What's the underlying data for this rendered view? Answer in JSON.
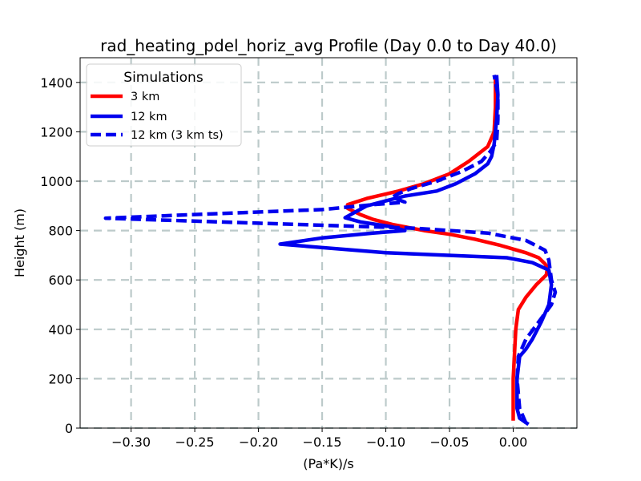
{
  "chart_data": {
    "type": "line",
    "title": "rad_heating_pdel_horiz_avg Profile (Day 0.0 to Day 40.0)",
    "xlabel": "(Pa*K)/s",
    "ylabel": "Height (m)",
    "xlim": [
      -0.34,
      0.05
    ],
    "ylim": [
      0,
      1500
    ],
    "xticks": [
      -0.3,
      -0.25,
      -0.2,
      -0.15,
      -0.1,
      -0.05,
      0.0
    ],
    "xtick_labels": [
      "−0.30",
      "−0.25",
      "−0.20",
      "−0.15",
      "−0.10",
      "−0.05",
      "0.00"
    ],
    "yticks": [
      0,
      200,
      400,
      600,
      800,
      1000,
      1200,
      1400
    ],
    "ytick_labels": [
      "0",
      "200",
      "400",
      "600",
      "800",
      "1000",
      "1200",
      "1400"
    ],
    "grid": true,
    "legend": {
      "title": "Simulations",
      "position": "top-left",
      "entries": [
        "3 km",
        "12 km",
        "12 km (3 km ts)"
      ]
    },
    "series": [
      {
        "name": "3 km",
        "color": "#ff0000",
        "style": "solid",
        "points": [
          [
            0.0,
            30
          ],
          [
            0.0,
            100
          ],
          [
            0.0,
            200
          ],
          [
            0.001,
            300
          ],
          [
            0.002,
            400
          ],
          [
            0.004,
            480
          ],
          [
            0.01,
            530
          ],
          [
            0.018,
            580
          ],
          [
            0.026,
            620
          ],
          [
            0.027,
            650
          ],
          [
            0.025,
            665
          ],
          [
            0.02,
            690
          ],
          [
            0.01,
            710
          ],
          [
            -0.01,
            740
          ],
          [
            -0.03,
            765
          ],
          [
            -0.05,
            785
          ],
          [
            -0.07,
            800
          ],
          [
            -0.095,
            825
          ],
          [
            -0.11,
            845
          ],
          [
            -0.12,
            865
          ],
          [
            -0.13,
            890
          ],
          [
            -0.13,
            905
          ],
          [
            -0.115,
            930
          ],
          [
            -0.09,
            960
          ],
          [
            -0.07,
            990
          ],
          [
            -0.05,
            1030
          ],
          [
            -0.035,
            1080
          ],
          [
            -0.02,
            1140
          ],
          [
            -0.015,
            1200
          ],
          [
            -0.014,
            1300
          ],
          [
            -0.014,
            1430
          ]
        ]
      },
      {
        "name": "12 km",
        "color": "#0000ee",
        "style": "solid",
        "points": [
          [
            0.012,
            15
          ],
          [
            0.005,
            40
          ],
          [
            0.003,
            80
          ],
          [
            0.003,
            200
          ],
          [
            0.005,
            290
          ],
          [
            0.01,
            320
          ],
          [
            0.015,
            360
          ],
          [
            0.022,
            430
          ],
          [
            0.028,
            500
          ],
          [
            0.03,
            580
          ],
          [
            0.028,
            640
          ],
          [
            0.015,
            670
          ],
          [
            -0.005,
            690
          ],
          [
            -0.1,
            710
          ],
          [
            -0.183,
            745
          ],
          [
            -0.15,
            770
          ],
          [
            -0.11,
            790
          ],
          [
            -0.085,
            800
          ],
          [
            -0.095,
            815
          ],
          [
            -0.12,
            835
          ],
          [
            -0.132,
            852
          ],
          [
            -0.125,
            872
          ],
          [
            -0.115,
            900
          ],
          [
            -0.1,
            920
          ],
          [
            -0.085,
            940
          ],
          [
            -0.06,
            960
          ],
          [
            -0.045,
            990
          ],
          [
            -0.03,
            1030
          ],
          [
            -0.02,
            1070
          ],
          [
            -0.017,
            1100
          ],
          [
            -0.015,
            1150
          ],
          [
            -0.013,
            1250
          ],
          [
            -0.012,
            1350
          ],
          [
            -0.013,
            1430
          ]
        ]
      },
      {
        "name": "12 km (3 km ts)",
        "color": "#0000ee",
        "style": "dashed",
        "points": [
          [
            0.01,
            20
          ],
          [
            0.005,
            80
          ],
          [
            0.003,
            200
          ],
          [
            0.004,
            290
          ],
          [
            0.01,
            360
          ],
          [
            0.02,
            430
          ],
          [
            0.03,
            500
          ],
          [
            0.033,
            550
          ],
          [
            0.03,
            600
          ],
          [
            0.028,
            680
          ],
          [
            0.025,
            720
          ],
          [
            0.01,
            760
          ],
          [
            -0.02,
            790
          ],
          [
            -0.08,
            810
          ],
          [
            -0.2,
            830
          ],
          [
            -0.32,
            850
          ],
          [
            -0.25,
            865
          ],
          [
            -0.15,
            885
          ],
          [
            -0.11,
            905
          ],
          [
            -0.085,
            915
          ],
          [
            -0.095,
            935
          ],
          [
            -0.09,
            950
          ],
          [
            -0.08,
            970
          ],
          [
            -0.06,
            1000
          ],
          [
            -0.04,
            1040
          ],
          [
            -0.025,
            1080
          ],
          [
            -0.018,
            1120
          ],
          [
            -0.013,
            1160
          ],
          [
            -0.012,
            1250
          ],
          [
            -0.012,
            1350
          ],
          [
            -0.015,
            1430
          ]
        ]
      }
    ]
  }
}
